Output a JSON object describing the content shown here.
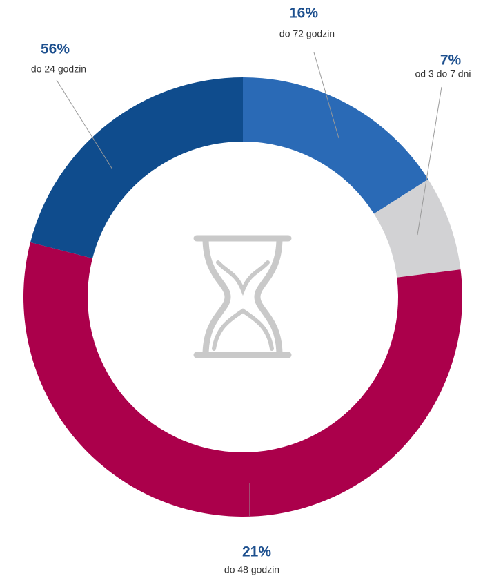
{
  "chart_data": {
    "type": "donut",
    "categories": [
      "do 72 godzin",
      "od 3 do 7 dni",
      "do 24 godzin",
      "do 48 godzin"
    ],
    "values": [
      16,
      7,
      56,
      21
    ],
    "value_labels": [
      "16%",
      "7%",
      "56%",
      "21%"
    ],
    "colors": [
      "#2a6ab6",
      "#d2d2d4",
      "#ab004b",
      "#0f4c8d"
    ]
  }
}
